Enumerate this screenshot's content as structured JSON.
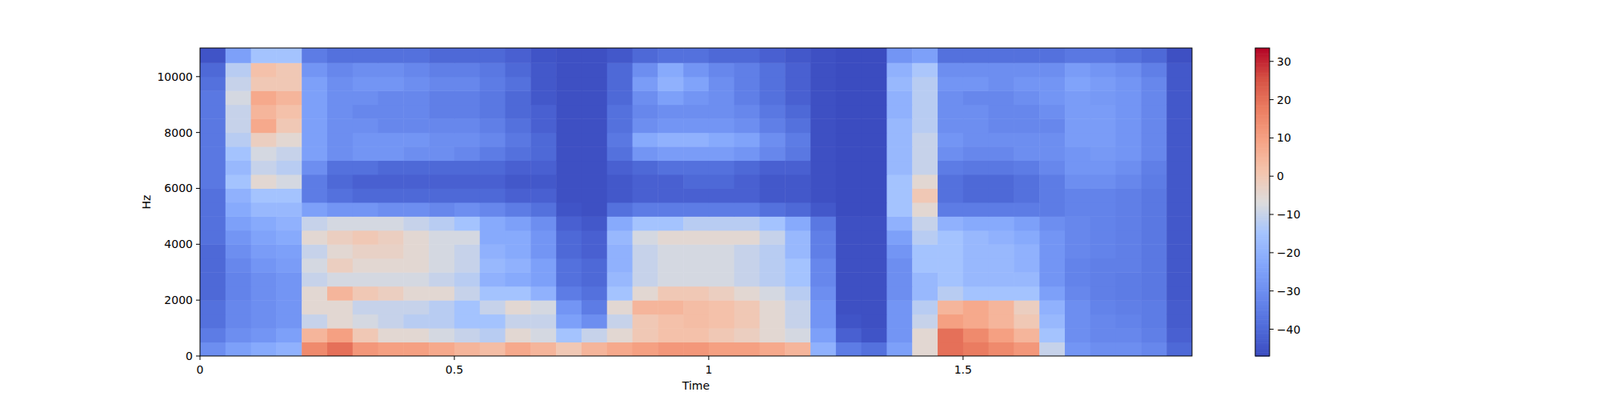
{
  "chart_data": {
    "type": "heatmap",
    "xlabel": "Time",
    "ylabel": "Hz",
    "xlim": [
      0,
      1.95
    ],
    "ylim": [
      0,
      11025
    ],
    "xticks": [
      0,
      0.5,
      1,
      1.5
    ],
    "yticks": [
      0,
      2000,
      4000,
      6000,
      8000,
      10000
    ],
    "x_edges": [
      0,
      0.05,
      0.1,
      0.15,
      0.2,
      0.25,
      0.3,
      0.35,
      0.4,
      0.45,
      0.5,
      0.55,
      0.6,
      0.65,
      0.7,
      0.75,
      0.8,
      0.85,
      0.9,
      0.95,
      1.0,
      1.05,
      1.1,
      1.15,
      1.2,
      1.25,
      1.3,
      1.35,
      1.4,
      1.45,
      1.5,
      1.55,
      1.6,
      1.65,
      1.7,
      1.75,
      1.8,
      1.85,
      1.9,
      1.95
    ],
    "y_edges": [
      0,
      500,
      1000,
      1500,
      2000,
      2500,
      3000,
      3500,
      4000,
      4500,
      5000,
      5500,
      6000,
      6500,
      7000,
      7500,
      8000,
      8500,
      9000,
      9500,
      10000,
      10500,
      11025
    ],
    "cells": [
      [
        -30,
        -25,
        -22,
        -20,
        15,
        20,
        12,
        10,
        10,
        8,
        5,
        3,
        8,
        5,
        0,
        5,
        8,
        10,
        12,
        12,
        10,
        10,
        8,
        5,
        -20,
        -35,
        -38,
        -25,
        -5,
        20,
        18,
        15,
        12,
        -10,
        -28,
        -30,
        -30,
        -32,
        -40
      ],
      [
        -35,
        -30,
        -28,
        -25,
        5,
        10,
        0,
        -5,
        -5,
        -8,
        -10,
        -12,
        -5,
        -8,
        -15,
        -10,
        -5,
        0,
        2,
        2,
        0,
        -2,
        -5,
        -8,
        -25,
        -42,
        -45,
        -28,
        -5,
        20,
        15,
        10,
        5,
        -15,
        -30,
        -32,
        -32,
        -34,
        -42
      ],
      [
        -38,
        -32,
        -30,
        -28,
        -10,
        -5,
        -8,
        -10,
        -12,
        -12,
        -15,
        -15,
        -10,
        -10,
        -25,
        -30,
        -10,
        0,
        2,
        3,
        2,
        0,
        -5,
        -10,
        -28,
        -45,
        -46,
        -28,
        -10,
        10,
        8,
        5,
        0,
        -18,
        -30,
        -32,
        -33,
        -35,
        -43
      ],
      [
        -38,
        -32,
        -30,
        -28,
        -5,
        -5,
        -10,
        -10,
        -10,
        -12,
        -15,
        -10,
        -5,
        -8,
        -28,
        -35,
        -5,
        5,
        5,
        3,
        2,
        0,
        -5,
        -10,
        -28,
        -46,
        -46,
        -28,
        -12,
        5,
        8,
        5,
        -2,
        -20,
        -30,
        -33,
        -34,
        -35,
        -43
      ],
      [
        -40,
        -33,
        -30,
        -28,
        -5,
        5,
        0,
        -2,
        -5,
        -5,
        -10,
        -15,
        -15,
        -20,
        -35,
        -38,
        -15,
        -5,
        0,
        0,
        -2,
        -5,
        -8,
        -12,
        -30,
        -46,
        -46,
        -30,
        -18,
        -12,
        -15,
        -15,
        -15,
        -25,
        -32,
        -34,
        -35,
        -36,
        -44
      ],
      [
        -40,
        -33,
        -30,
        -28,
        -10,
        -8,
        -8,
        -8,
        -8,
        -10,
        -12,
        -20,
        -22,
        -25,
        -38,
        -40,
        -18,
        -10,
        -8,
        -8,
        -8,
        -10,
        -12,
        -15,
        -32,
        -46,
        -46,
        -30,
        -18,
        -15,
        -18,
        -18,
        -18,
        -28,
        -33,
        -34,
        -35,
        -36,
        -44
      ],
      [
        -40,
        -32,
        -28,
        -26,
        -8,
        -2,
        -5,
        -5,
        -5,
        -8,
        -10,
        -18,
        -20,
        -25,
        -38,
        -40,
        -20,
        -10,
        -8,
        -8,
        -8,
        -10,
        -12,
        -15,
        -32,
        -46,
        -46,
        -30,
        -15,
        -15,
        -18,
        -18,
        -20,
        -28,
        -33,
        -34,
        -34,
        -36,
        -44
      ],
      [
        -40,
        -30,
        -26,
        -25,
        -10,
        -5,
        -3,
        -3,
        -5,
        -8,
        -10,
        -20,
        -22,
        -28,
        -40,
        -42,
        -20,
        -10,
        -8,
        -8,
        -8,
        -10,
        -12,
        -18,
        -34,
        -46,
        -46,
        -28,
        -15,
        -15,
        -18,
        -18,
        -20,
        -28,
        -32,
        -33,
        -34,
        -36,
        -44
      ],
      [
        -38,
        -28,
        -24,
        -22,
        -5,
        -2,
        0,
        -2,
        -5,
        -8,
        -8,
        -22,
        -22,
        -28,
        -40,
        -42,
        -18,
        -8,
        -5,
        -5,
        -5,
        -5,
        -10,
        -18,
        -34,
        -46,
        -46,
        -25,
        -12,
        -15,
        -18,
        -20,
        -22,
        -28,
        -32,
        -33,
        -34,
        -36,
        -44
      ],
      [
        -38,
        -25,
        -22,
        -20,
        -10,
        -8,
        -8,
        -8,
        -10,
        -12,
        -15,
        -22,
        -25,
        -30,
        -42,
        -44,
        -22,
        -15,
        -15,
        -12,
        -12,
        -12,
        -15,
        -22,
        -36,
        -46,
        -46,
        -20,
        -10,
        -20,
        -22,
        -22,
        -25,
        -30,
        -32,
        -33,
        -34,
        -36,
        -44
      ],
      [
        -38,
        -22,
        -18,
        -18,
        -25,
        -28,
        -28,
        -30,
        -30,
        -32,
        -30,
        -32,
        -35,
        -38,
        -45,
        -46,
        -38,
        -35,
        -35,
        -35,
        -35,
        -35,
        -38,
        -40,
        -44,
        -47,
        -47,
        -15,
        -5,
        -35,
        -35,
        -35,
        -35,
        -35,
        -33,
        -33,
        -34,
        -36,
        -44
      ],
      [
        -38,
        -20,
        -15,
        -15,
        -35,
        -38,
        -40,
        -40,
        -40,
        -40,
        -40,
        -40,
        -42,
        -42,
        -46,
        -46,
        -44,
        -42,
        -42,
        -42,
        -42,
        -42,
        -44,
        -44,
        -46,
        -47,
        -47,
        -15,
        0,
        -38,
        -40,
        -40,
        -38,
        -35,
        -33,
        -33,
        -34,
        -36,
        -44
      ],
      [
        -36,
        -15,
        -5,
        -8,
        -35,
        -40,
        -42,
        -42,
        -42,
        -42,
        -42,
        -42,
        -44,
        -44,
        -46,
        -46,
        -44,
        -42,
        -42,
        -40,
        -40,
        -42,
        -44,
        -44,
        -46,
        -47,
        -47,
        -15,
        -5,
        -38,
        -40,
        -40,
        -38,
        -35,
        -30,
        -30,
        -32,
        -35,
        -44
      ],
      [
        -36,
        -18,
        -10,
        -12,
        -30,
        -38,
        -38,
        -40,
        -40,
        -40,
        -40,
        -40,
        -42,
        -42,
        -46,
        -46,
        -42,
        -40,
        -38,
        -38,
        -38,
        -40,
        -42,
        -42,
        -46,
        -47,
        -47,
        -18,
        -10,
        -35,
        -36,
        -36,
        -35,
        -32,
        -28,
        -28,
        -30,
        -34,
        -44
      ],
      [
        -36,
        -15,
        -8,
        -10,
        -25,
        -30,
        -28,
        -28,
        -30,
        -30,
        -32,
        -35,
        -38,
        -40,
        -46,
        -46,
        -38,
        -28,
        -26,
        -26,
        -26,
        -28,
        -32,
        -36,
        -46,
        -47,
        -47,
        -18,
        -10,
        -30,
        -32,
        -32,
        -30,
        -30,
        -28,
        -27,
        -28,
        -32,
        -44
      ],
      [
        -36,
        -12,
        -2,
        -5,
        -25,
        -30,
        -28,
        -28,
        -28,
        -30,
        -30,
        -32,
        -36,
        -40,
        -46,
        -46,
        -36,
        -22,
        -20,
        -20,
        -22,
        -24,
        -30,
        -35,
        -46,
        -47,
        -47,
        -18,
        -10,
        -28,
        -30,
        -30,
        -30,
        -30,
        -26,
        -26,
        -28,
        -32,
        -44
      ],
      [
        -36,
        -10,
        8,
        0,
        -25,
        -30,
        -30,
        -32,
        -32,
        -32,
        -32,
        -34,
        -38,
        -42,
        -46,
        -46,
        -38,
        -30,
        -28,
        -28,
        -28,
        -30,
        -34,
        -38,
        -46,
        -47,
        -47,
        -18,
        -12,
        -30,
        -30,
        -32,
        -32,
        -32,
        -26,
        -26,
        -28,
        -32,
        -44
      ],
      [
        -36,
        -10,
        5,
        2,
        -25,
        -30,
        -32,
        -32,
        -32,
        -34,
        -34,
        -36,
        -40,
        -42,
        -46,
        -46,
        -38,
        -32,
        -30,
        -30,
        -30,
        -32,
        -36,
        -40,
        -46,
        -47,
        -47,
        -20,
        -12,
        -30,
        -30,
        -32,
        -32,
        -30,
        -26,
        -26,
        -28,
        -32,
        -44
      ],
      [
        -36,
        -8,
        8,
        5,
        -25,
        -30,
        -30,
        -32,
        -32,
        -34,
        -34,
        -36,
        -40,
        -44,
        -46,
        -46,
        -40,
        -30,
        -25,
        -28,
        -30,
        -34,
        -38,
        -42,
        -46,
        -47,
        -47,
        -20,
        -12,
        -30,
        -32,
        -32,
        -30,
        -28,
        -26,
        -27,
        -28,
        -32,
        -44
      ],
      [
        -38,
        -10,
        0,
        0,
        -25,
        -30,
        -28,
        -28,
        -30,
        -32,
        -32,
        -35,
        -38,
        -44,
        -46,
        -46,
        -40,
        -26,
        -20,
        -24,
        -30,
        -34,
        -38,
        -42,
        -46,
        -47,
        -47,
        -18,
        -12,
        -28,
        -28,
        -30,
        -28,
        -28,
        -24,
        -26,
        -28,
        -32,
        -44
      ],
      [
        -40,
        -12,
        2,
        0,
        -28,
        -32,
        -30,
        -30,
        -32,
        -34,
        -34,
        -36,
        -40,
        -44,
        -46,
        -46,
        -40,
        -30,
        -22,
        -28,
        -32,
        -34,
        -38,
        -42,
        -46,
        -47,
        -47,
        -20,
        -14,
        -30,
        -30,
        -30,
        -30,
        -30,
        -26,
        -28,
        -30,
        -34,
        -44
      ],
      [
        -45,
        -25,
        -15,
        -15,
        -35,
        -38,
        -38,
        -38,
        -38,
        -40,
        -40,
        -40,
        -42,
        -45,
        -46,
        -46,
        -44,
        -40,
        -38,
        -38,
        -40,
        -40,
        -42,
        -44,
        -46,
        -47,
        -47,
        -28,
        -25,
        -38,
        -38,
        -38,
        -38,
        -38,
        -36,
        -36,
        -38,
        -40,
        -46
      ]
    ],
    "colorbar": {
      "range": [
        -47,
        33.5
      ],
      "ticks": [
        {
          "value": -40,
          "label": "−40"
        },
        {
          "value": -30,
          "label": "−30"
        },
        {
          "value": -20,
          "label": "−20"
        },
        {
          "value": -10,
          "label": "−10"
        },
        0,
        10,
        20,
        30
      ]
    }
  }
}
